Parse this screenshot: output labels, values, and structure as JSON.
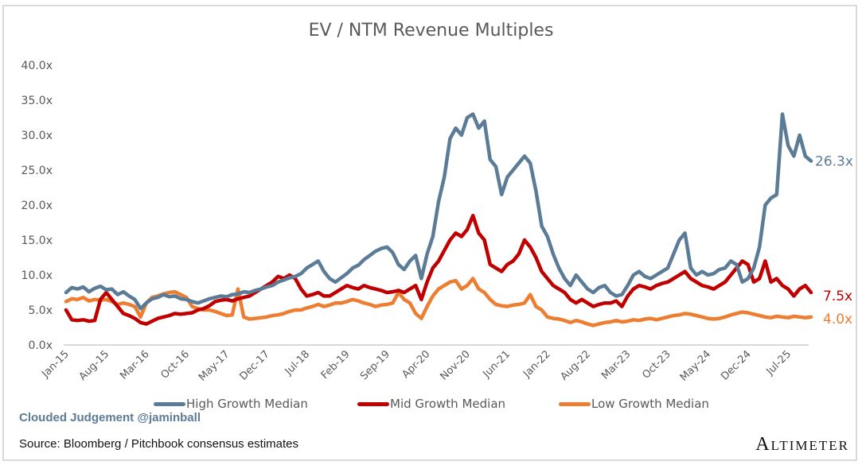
{
  "chart_data": {
    "type": "line",
    "title": "EV / NTM Revenue Multiples",
    "xlabel": "",
    "ylabel": "",
    "ylim": [
      0,
      40
    ],
    "yticks": [
      "0.0x",
      "5.0x",
      "10.0x",
      "15.0x",
      "20.0x",
      "25.0x",
      "30.0x",
      "35.0x",
      "40.0x"
    ],
    "ytick_values": [
      0,
      5,
      10,
      15,
      20,
      25,
      30,
      35,
      40
    ],
    "xtick_labels": [
      "Jan-15",
      "Aug-15",
      "Mar-16",
      "Oct-16",
      "May-17",
      "Dec-17",
      "Jul-18",
      "Feb-19",
      "Sep-19",
      "Apr-20",
      "Nov-20",
      "Jun-21",
      "Jan-22",
      "Aug-22",
      "Mar-23",
      "Oct-23",
      "May-24",
      "Dec-24",
      "Jul-25"
    ],
    "x_start": "Jan-15",
    "x_step": "1 month",
    "grid": false,
    "legend_position": "bottom",
    "series": [
      {
        "name": "High Growth Median",
        "color": "#5b7b96",
        "end_label": "26.3x",
        "values": [
          7.5,
          8.2,
          8.0,
          8.3,
          7.6,
          8.1,
          8.4,
          7.9,
          8.0,
          7.2,
          7.6,
          7.0,
          6.5,
          5.2,
          6.0,
          6.6,
          6.8,
          7.2,
          6.9,
          7.0,
          6.6,
          6.5,
          6.2,
          6.0,
          6.3,
          6.6,
          6.8,
          7.0,
          6.9,
          7.2,
          7.3,
          7.6,
          7.5,
          7.8,
          8.0,
          8.3,
          8.5,
          9.0,
          9.3,
          9.6,
          9.8,
          10.2,
          11.0,
          11.5,
          12.0,
          10.5,
          9.5,
          9.0,
          9.6,
          10.2,
          11.0,
          11.4,
          12.2,
          12.8,
          13.4,
          13.8,
          14.0,
          13.2,
          11.5,
          10.8,
          12.0,
          12.8,
          9.5,
          13.0,
          15.5,
          20.5,
          24.0,
          29.5,
          31.0,
          30.0,
          32.5,
          33.0,
          31.0,
          32.0,
          26.5,
          25.5,
          21.5,
          24.0,
          25.0,
          26.0,
          27.0,
          26.0,
          22.0,
          17.0,
          15.5,
          13.0,
          11.0,
          9.5,
          8.5,
          10.0,
          9.0,
          8.0,
          7.5,
          8.2,
          8.5,
          7.5,
          7.0,
          7.2,
          8.5,
          10.0,
          10.5,
          9.8,
          9.5,
          10.0,
          10.5,
          11.0,
          13.0,
          15.0,
          16.0,
          11.0,
          10.0,
          10.5,
          10.0,
          10.2,
          10.8,
          11.0,
          12.0,
          11.5,
          9.0,
          9.5,
          11.0,
          14.0,
          20.0,
          21.0,
          21.5,
          33.0,
          28.5,
          27.0,
          30.0,
          27.0,
          26.3
        ]
      },
      {
        "name": "Mid Growth Median",
        "color": "#c00000",
        "end_label": "7.5x",
        "values": [
          5.0,
          3.6,
          3.5,
          3.6,
          3.4,
          3.5,
          6.5,
          7.5,
          6.5,
          5.5,
          4.5,
          4.2,
          3.8,
          3.2,
          3.0,
          3.4,
          3.8,
          4.0,
          4.2,
          4.5,
          4.4,
          4.5,
          4.6,
          5.0,
          5.2,
          5.6,
          6.2,
          6.4,
          6.5,
          6.3,
          6.6,
          6.8,
          7.0,
          7.5,
          8.0,
          8.5,
          9.0,
          9.8,
          9.5,
          10.0,
          9.5,
          8.0,
          7.0,
          7.2,
          7.5,
          7.0,
          7.0,
          7.5,
          8.0,
          8.5,
          8.2,
          8.0,
          8.5,
          8.2,
          8.0,
          7.8,
          7.5,
          7.6,
          7.8,
          7.5,
          8.0,
          8.5,
          6.5,
          9.0,
          11.0,
          12.0,
          13.5,
          15.0,
          16.0,
          15.5,
          16.5,
          18.5,
          16.0,
          15.0,
          11.5,
          11.0,
          10.5,
          11.5,
          12.0,
          13.0,
          15.0,
          14.0,
          12.5,
          10.5,
          9.5,
          8.5,
          8.0,
          7.5,
          6.5,
          6.0,
          6.5,
          6.0,
          5.5,
          5.8,
          6.0,
          6.0,
          6.3,
          5.5,
          7.0,
          8.0,
          8.5,
          8.3,
          8.0,
          8.5,
          8.8,
          9.0,
          9.5,
          10.0,
          10.5,
          9.5,
          9.0,
          8.5,
          8.3,
          8.0,
          8.5,
          9.0,
          10.0,
          11.0,
          12.0,
          11.5,
          9.0,
          9.5,
          12.0,
          9.0,
          9.5,
          8.5,
          8.0,
          7.0,
          8.0,
          8.5,
          7.5
        ]
      },
      {
        "name": "Low Growth Median",
        "color": "#ed7d31",
        "end_label": "4.0x",
        "values": [
          6.2,
          6.6,
          6.5,
          6.8,
          6.3,
          6.5,
          6.4,
          6.5,
          6.2,
          5.8,
          6.0,
          5.8,
          5.5,
          4.0,
          6.0,
          6.8,
          7.0,
          7.3,
          7.5,
          7.6,
          7.2,
          6.8,
          5.5,
          5.2,
          5.0,
          5.0,
          4.8,
          4.5,
          4.2,
          4.3,
          8.0,
          4.0,
          3.7,
          3.8,
          3.9,
          4.0,
          4.2,
          4.3,
          4.5,
          4.8,
          5.0,
          5.0,
          5.3,
          5.5,
          5.8,
          5.5,
          5.7,
          6.0,
          6.0,
          6.2,
          6.5,
          6.3,
          6.0,
          5.8,
          5.5,
          5.7,
          5.8,
          6.0,
          7.5,
          6.5,
          6.0,
          4.5,
          3.8,
          5.5,
          7.0,
          8.0,
          8.5,
          9.0,
          9.2,
          8.0,
          8.5,
          9.5,
          8.0,
          7.5,
          6.5,
          5.8,
          5.6,
          5.5,
          5.7,
          5.8,
          6.0,
          7.2,
          5.5,
          5.0,
          4.0,
          3.8,
          3.7,
          3.5,
          3.2,
          3.5,
          3.3,
          3.0,
          2.8,
          3.0,
          3.2,
          3.3,
          3.5,
          3.3,
          3.4,
          3.6,
          3.5,
          3.7,
          3.8,
          3.6,
          3.8,
          4.0,
          4.2,
          4.3,
          4.5,
          4.4,
          4.2,
          4.0,
          3.8,
          3.7,
          3.8,
          4.0,
          4.3,
          4.5,
          4.7,
          4.6,
          4.4,
          4.2,
          4.0,
          3.9,
          4.1,
          4.0,
          3.9,
          4.1,
          4.0,
          3.9,
          4.0
        ]
      }
    ]
  },
  "footer": {
    "brand": "Clouded Judgement @jaminball",
    "source": "Source: Bloomberg / Pitchbook consensus estimates",
    "logo": "Altimeter"
  }
}
